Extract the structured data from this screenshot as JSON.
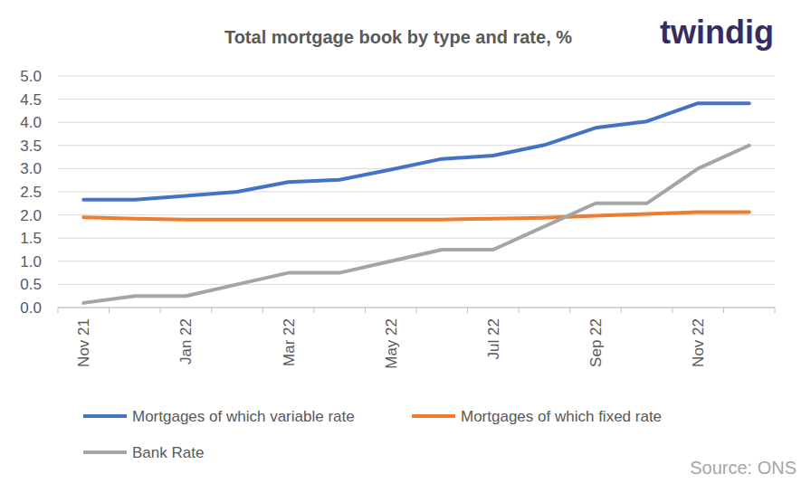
{
  "chart_data": {
    "type": "line",
    "title": "Total mortgage book by type and rate, %",
    "logo": "twindig",
    "source": "Source: ONS",
    "categories": [
      "Nov 21",
      null,
      "Jan 22",
      null,
      "Mar 22",
      null,
      "May 22",
      null,
      "Jul 22",
      null,
      "Sep 22",
      null,
      "Nov 22",
      null
    ],
    "series": [
      {
        "name": "Mortgages of which variable rate",
        "color": "#4472c4",
        "values": [
          2.33,
          2.33,
          2.41,
          2.5,
          2.71,
          2.76,
          2.98,
          3.21,
          3.28,
          3.51,
          3.88,
          4.02,
          4.41,
          4.41
        ]
      },
      {
        "name": "Mortgages of which fixed rate",
        "color": "#ed7d31",
        "values": [
          1.95,
          1.92,
          1.9,
          1.9,
          1.9,
          1.9,
          1.9,
          1.9,
          1.92,
          1.94,
          1.98,
          2.02,
          2.06,
          2.06
        ]
      },
      {
        "name": "Bank Rate",
        "color": "#a5a5a5",
        "values": [
          0.1,
          0.25,
          0.25,
          0.5,
          0.75,
          0.75,
          1.0,
          1.25,
          1.25,
          1.75,
          2.25,
          2.25,
          3.0,
          3.5
        ]
      }
    ],
    "ylim": [
      0,
      5
    ],
    "yticks": [
      {
        "value": 0,
        "label": "0.0"
      },
      0.5,
      {
        "value": 1,
        "label": "1.0"
      },
      1.5,
      {
        "value": 2,
        "label": "2.0"
      },
      2.5,
      {
        "value": 3,
        "label": "3.0"
      },
      3.5,
      {
        "value": 4,
        "label": "4.0"
      },
      4.5,
      {
        "value": 5,
        "label": "5.0"
      }
    ],
    "grid": true,
    "legend": "bottom"
  }
}
